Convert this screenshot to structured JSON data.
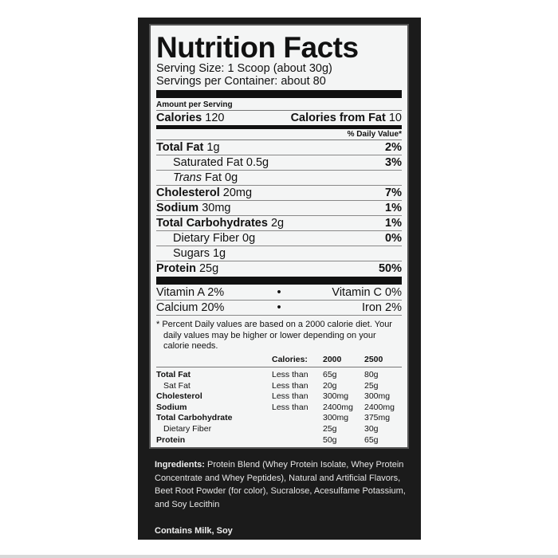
{
  "title": "Nutrition Facts",
  "serving_size": "Serving Size: 1 Scoop (about 30g)",
  "servings_per_container": "Servings per Container: about 80",
  "amount_per_serving": "Amount per Serving",
  "calories": {
    "label": "Calories",
    "value": "120",
    "fat_label": "Calories from Fat",
    "fat_value": "10"
  },
  "daily_value_header": "% Daily Value*",
  "nutrients": [
    {
      "name": "Total Fat",
      "amount": "1g",
      "dv": "2%"
    },
    {
      "name": "Saturated Fat",
      "amount": "0.5g",
      "dv": "3%"
    },
    {
      "name": "Trans",
      "name2": "Fat",
      "amount": "0g",
      "dv": ""
    },
    {
      "name": "Cholesterol",
      "amount": "20mg",
      "dv": "7%"
    },
    {
      "name": "Sodium",
      "amount": "30mg",
      "dv": "1%"
    },
    {
      "name": "Total Carbohydrates",
      "amount": "2g",
      "dv": "1%"
    },
    {
      "name": "Dietary Fiber",
      "amount": "0g",
      "dv": "0%"
    },
    {
      "name": "Sugars",
      "amount": "1g",
      "dv": ""
    },
    {
      "name": "Protein",
      "amount": "25g",
      "dv": "50%"
    }
  ],
  "vitamins": [
    {
      "left": "Vitamin A  2%",
      "right": "Vitamin C  0%"
    },
    {
      "left": "Calcium  20%",
      "right": "Iron  2%"
    }
  ],
  "bullet": "•",
  "footnote": "* Percent Daily values are based on a 2000 calorie diet. Your daily values may be higher or lower depending on your calorie needs.",
  "reference_table": {
    "header": [
      "",
      "Calories:",
      "2000",
      "2500"
    ],
    "rows": [
      [
        "Total Fat",
        "Less than",
        "65g",
        "80g"
      ],
      [
        "Sat Fat",
        "Less than",
        "20g",
        "25g"
      ],
      [
        "Cholesterol",
        "Less than",
        "300mg",
        "300mg"
      ],
      [
        "Sodium",
        "Less than",
        "2400mg",
        "2400mg"
      ],
      [
        "Total Carbohydrate",
        "",
        "300mg",
        "375mg"
      ],
      [
        "Dietary Fiber",
        "",
        "25g",
        "30g"
      ],
      [
        "Protein",
        "",
        "50g",
        "65g"
      ]
    ]
  },
  "ingredients": {
    "label": "Ingredients:",
    "text": " Protein Blend (Whey Protein Isolate, Whey Protein Concentrate and Whey Peptides), Natural and Artificial Flavors, Beet Root Powder (for color), Sucralose, Acesulfame Potassium, and Soy Lecithin"
  },
  "contains": "Contains Milk, Soy"
}
